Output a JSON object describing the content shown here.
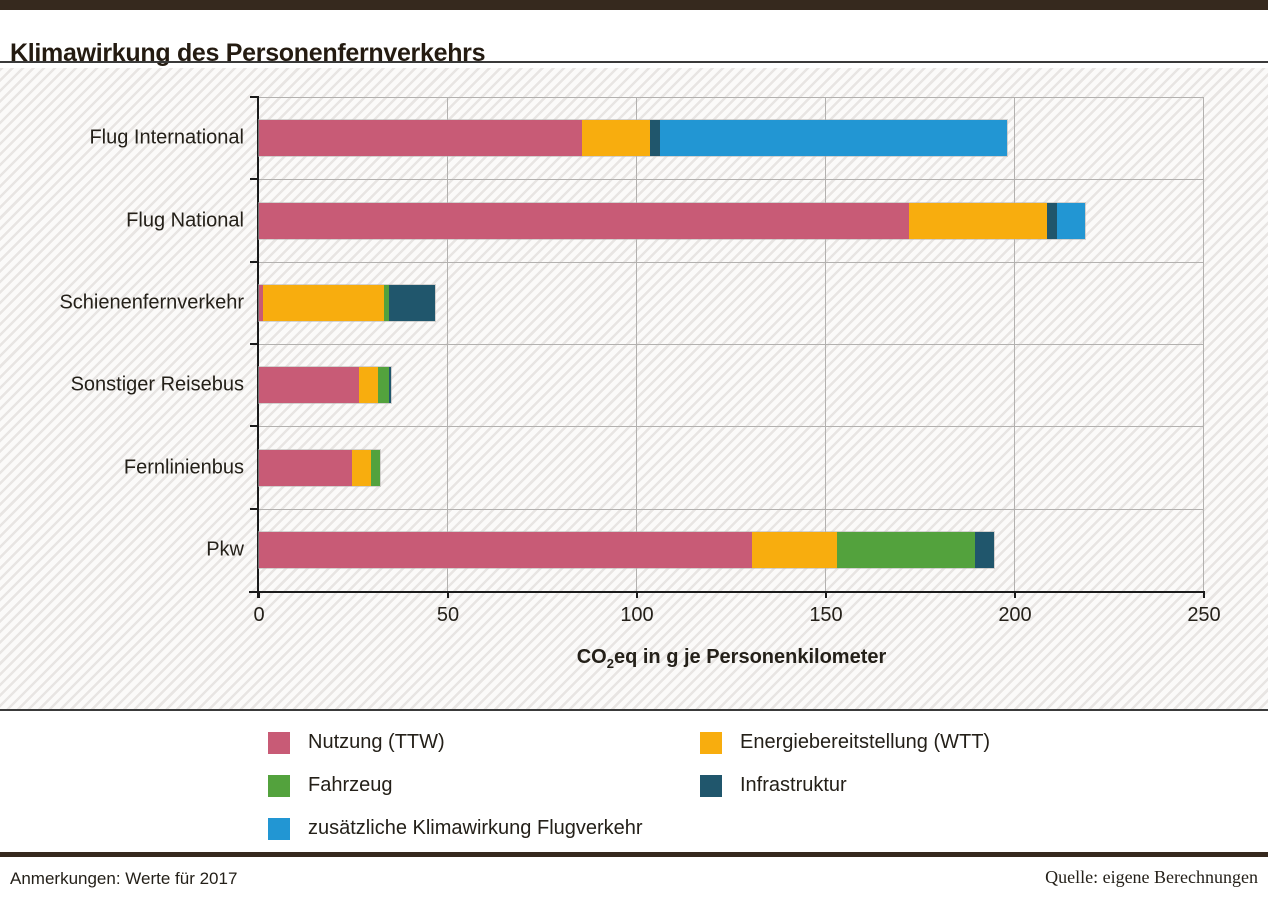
{
  "header": {
    "title": "Klimawirkung des Personenfernverkehrs"
  },
  "footer": {
    "left": "Anmerkungen: Werte für 2017",
    "right": "Quelle: eigene Berechnungen"
  },
  "chart_data": {
    "type": "bar",
    "orientation": "horizontal",
    "stacked": true,
    "title": "Klimawirkung des Personenfernverkehrs",
    "xlabel": "CO2eq in g je Personenkilometer",
    "xlabel_parts": {
      "pre": "CO",
      "sub": "2",
      "post": "eq in g je Personenkilometer"
    },
    "xlim": [
      0,
      250
    ],
    "xticks": [
      0,
      50,
      100,
      150,
      200,
      250
    ],
    "grid": true,
    "legend_position": "bottom",
    "categories": [
      "Flug International",
      "Flug National",
      "Schienenfernverkehr",
      "Sonstiger Reisebus",
      "Fernlinienbus",
      "Pkw"
    ],
    "series": [
      {
        "name": "Nutzung (TTW)",
        "color": "#c85b76",
        "values": [
          85.5,
          172,
          1,
          26.5,
          24.5,
          130.5
        ]
      },
      {
        "name": "Energiebereitstellung (WTT)",
        "color": "#f8ad0e",
        "values": [
          18,
          36.5,
          32,
          5,
          5,
          22.5
        ]
      },
      {
        "name": "Fahrzeug",
        "color": "#53a23d",
        "values": [
          0,
          0,
          1.5,
          3,
          2.5,
          36.5
        ]
      },
      {
        "name": "Infrastruktur",
        "color": "#20566c",
        "values": [
          2.5,
          2.5,
          12,
          0.5,
          0,
          5
        ]
      },
      {
        "name": "zusätzliche Klimawirkung Flugverkehr",
        "color": "#2296d3",
        "values": [
          92,
          7.5,
          0,
          0,
          0,
          0
        ]
      }
    ],
    "totals": [
      198,
      218.5,
      46.5,
      35,
      32,
      194.5
    ]
  }
}
